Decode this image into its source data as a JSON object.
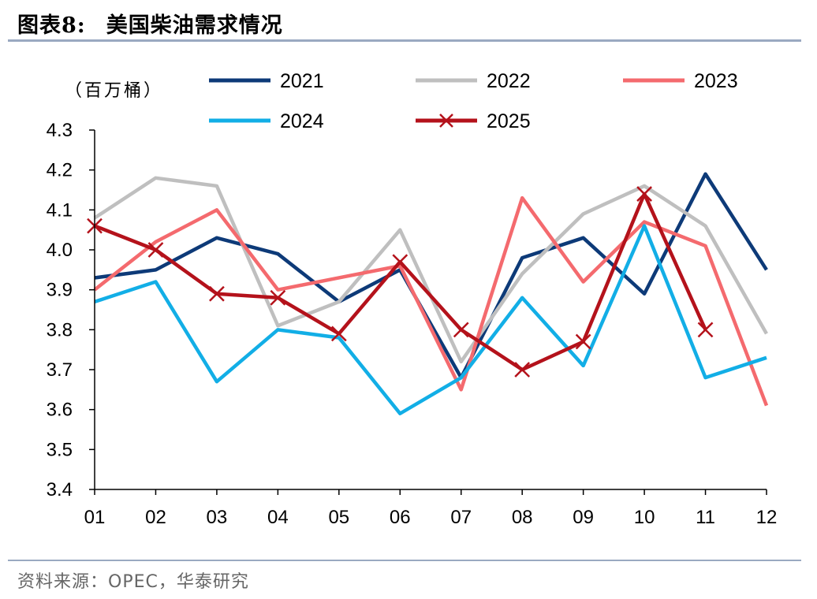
{
  "figure": {
    "label": "图表8:",
    "title": "美国柴油需求情况",
    "source": "资料来源：OPEC，华泰研究"
  },
  "chart_data": {
    "type": "line",
    "unit": "（百万桶）",
    "ylim": [
      3.4,
      4.3
    ],
    "yticks": [
      "4.3",
      "4.2",
      "4.1",
      "4.0",
      "3.9",
      "3.8",
      "3.7",
      "3.6",
      "3.5",
      "3.4"
    ],
    "ytick_values": [
      4.3,
      4.2,
      4.1,
      4.0,
      3.9,
      3.8,
      3.7,
      3.6,
      3.5,
      3.4
    ],
    "categories": [
      "01",
      "02",
      "03",
      "04",
      "05",
      "06",
      "07",
      "08",
      "09",
      "10",
      "11",
      "12"
    ],
    "grid": false,
    "legend_position": "top",
    "series": [
      {
        "name": "2021",
        "color": "#0d3a78",
        "marker": "none",
        "values": [
          3.93,
          3.95,
          4.03,
          3.99,
          3.87,
          3.95,
          3.68,
          3.98,
          4.03,
          3.89,
          4.19,
          3.95
        ]
      },
      {
        "name": "2022",
        "color": "#bfbfbf",
        "marker": "none",
        "values": [
          4.08,
          4.18,
          4.16,
          3.81,
          3.87,
          4.05,
          3.72,
          3.94,
          4.09,
          4.16,
          4.06,
          3.79
        ]
      },
      {
        "name": "2023",
        "color": "#f46a6e",
        "marker": "none",
        "values": [
          3.9,
          4.02,
          4.1,
          3.9,
          3.93,
          3.96,
          3.65,
          4.13,
          3.92,
          4.07,
          4.01,
          3.61
        ]
      },
      {
        "name": "2024",
        "color": "#12aee6",
        "marker": "none",
        "values": [
          3.87,
          3.92,
          3.67,
          3.8,
          3.78,
          3.59,
          3.68,
          3.88,
          3.71,
          4.06,
          3.68,
          3.73
        ]
      },
      {
        "name": "2025",
        "color": "#b4121b",
        "marker": "x",
        "values": [
          4.06,
          4.0,
          3.89,
          3.88,
          3.79,
          3.97,
          3.8,
          3.7,
          3.77,
          4.14,
          3.8,
          null
        ]
      }
    ]
  }
}
